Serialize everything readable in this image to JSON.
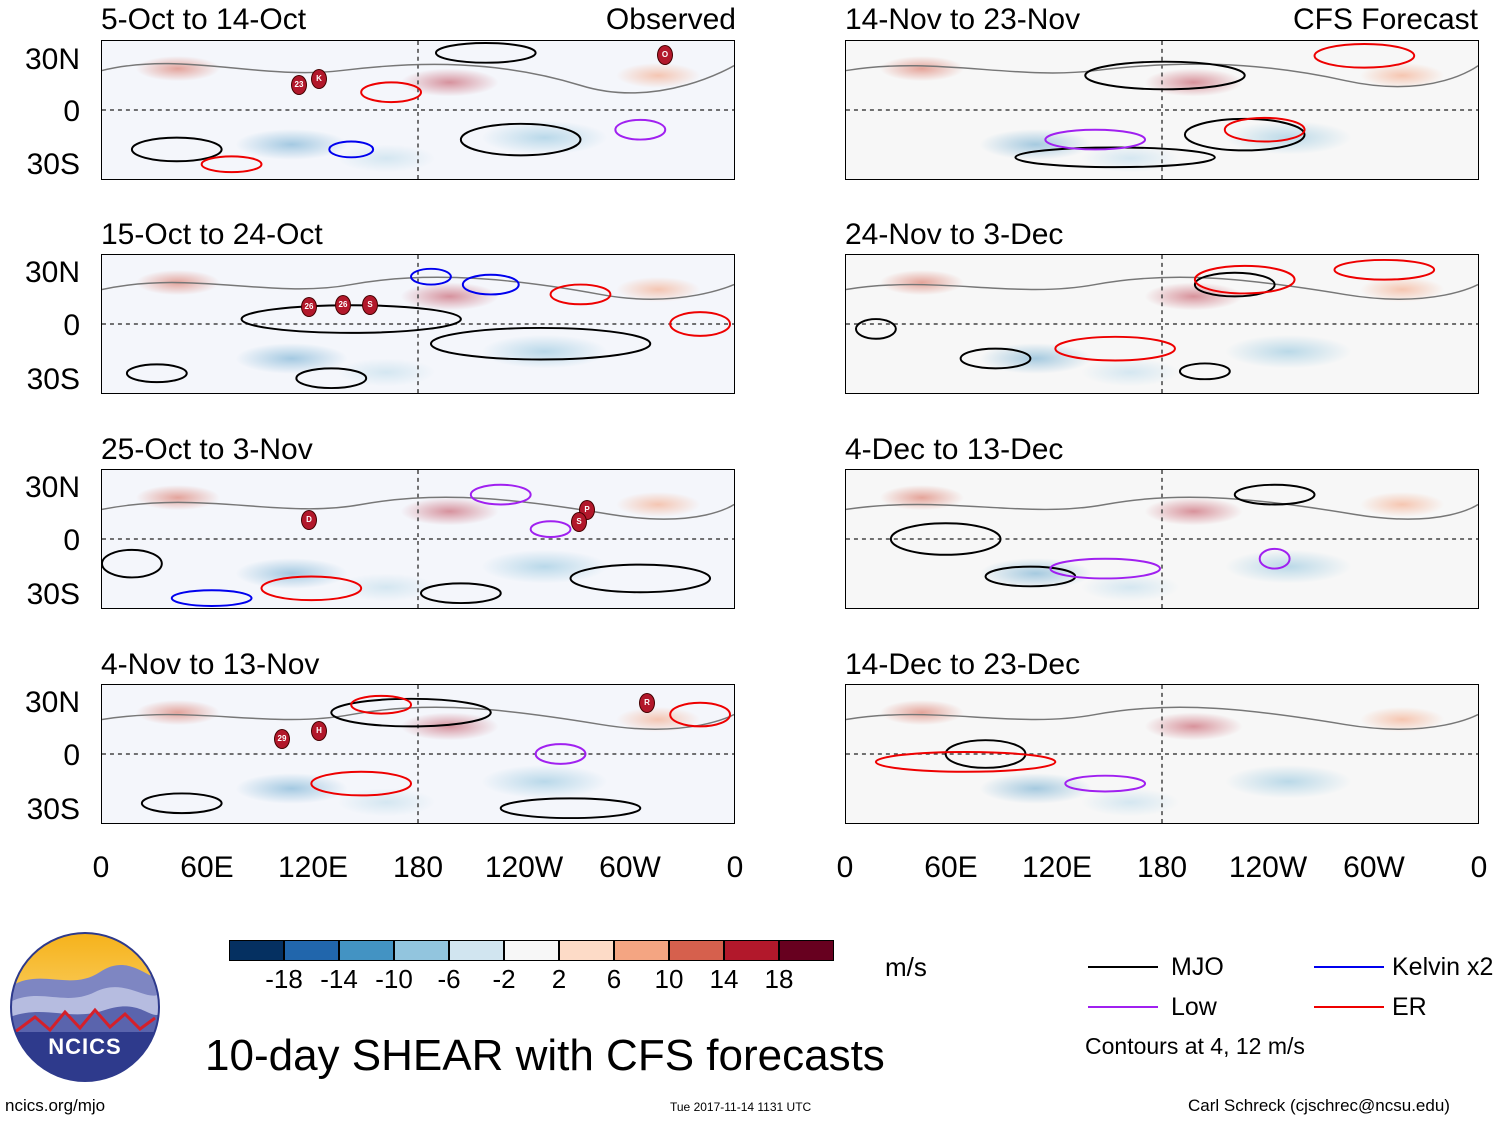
{
  "panels": {
    "observed": [
      {
        "period": "5-Oct to 14-Oct",
        "tag": "Observed"
      },
      {
        "period": "15-Oct to 24-Oct",
        "tag": ""
      },
      {
        "period": "25-Oct to 3-Nov",
        "tag": ""
      },
      {
        "period": "4-Nov to 13-Nov",
        "tag": ""
      }
    ],
    "forecast": [
      {
        "period": "14-Nov to 23-Nov",
        "tag": "CFS Forecast"
      },
      {
        "period": "24-Nov to 3-Dec",
        "tag": ""
      },
      {
        "period": "4-Dec to 13-Dec",
        "tag": ""
      },
      {
        "period": "14-Dec to 23-Dec",
        "tag": ""
      }
    ]
  },
  "latitude_labels": [
    "30N",
    "0",
    "30S"
  ],
  "longitude_labels": [
    "0",
    "60E",
    "120E",
    "180",
    "120W",
    "60W",
    "0"
  ],
  "colorbar": {
    "unit": "m/s",
    "ticks": [
      "-18",
      "-14",
      "-10",
      "-6",
      "-2",
      "2",
      "6",
      "10",
      "14",
      "18"
    ],
    "colors": [
      "#053061",
      "#2166ac",
      "#4393c3",
      "#92c5de",
      "#d1e5f0",
      "#f7f7f7",
      "#fddbc7",
      "#f4a582",
      "#d6604d",
      "#b2182b",
      "#67001f"
    ]
  },
  "legend": {
    "items": [
      {
        "label": "MJO",
        "color": "#000000"
      },
      {
        "label": "Kelvin x2",
        "color": "#0000ee"
      },
      {
        "label": "Low",
        "color": "#a020f0"
      },
      {
        "label": "ER",
        "color": "#ee0000"
      }
    ],
    "note": "Contours at 4, 12 m/s"
  },
  "storm_markers": [
    {
      "panel": 0,
      "labels": [
        "23",
        "K",
        "O"
      ]
    },
    {
      "panel": 1,
      "labels": [
        "26",
        "26",
        "S"
      ]
    },
    {
      "panel": 2,
      "labels": [
        "D",
        "P",
        "S"
      ]
    },
    {
      "panel": 3,
      "labels": [
        "29",
        "H",
        "R"
      ]
    }
  ],
  "title": "10-day SHEAR with CFS forecasts",
  "logo_text": "NCICS",
  "footer": {
    "left": "ncics.org/mjo",
    "center": "Tue 2017-11-14 1131 UTC",
    "right": "Carl Schreck (cjschrec@ncsu.edu)"
  }
}
